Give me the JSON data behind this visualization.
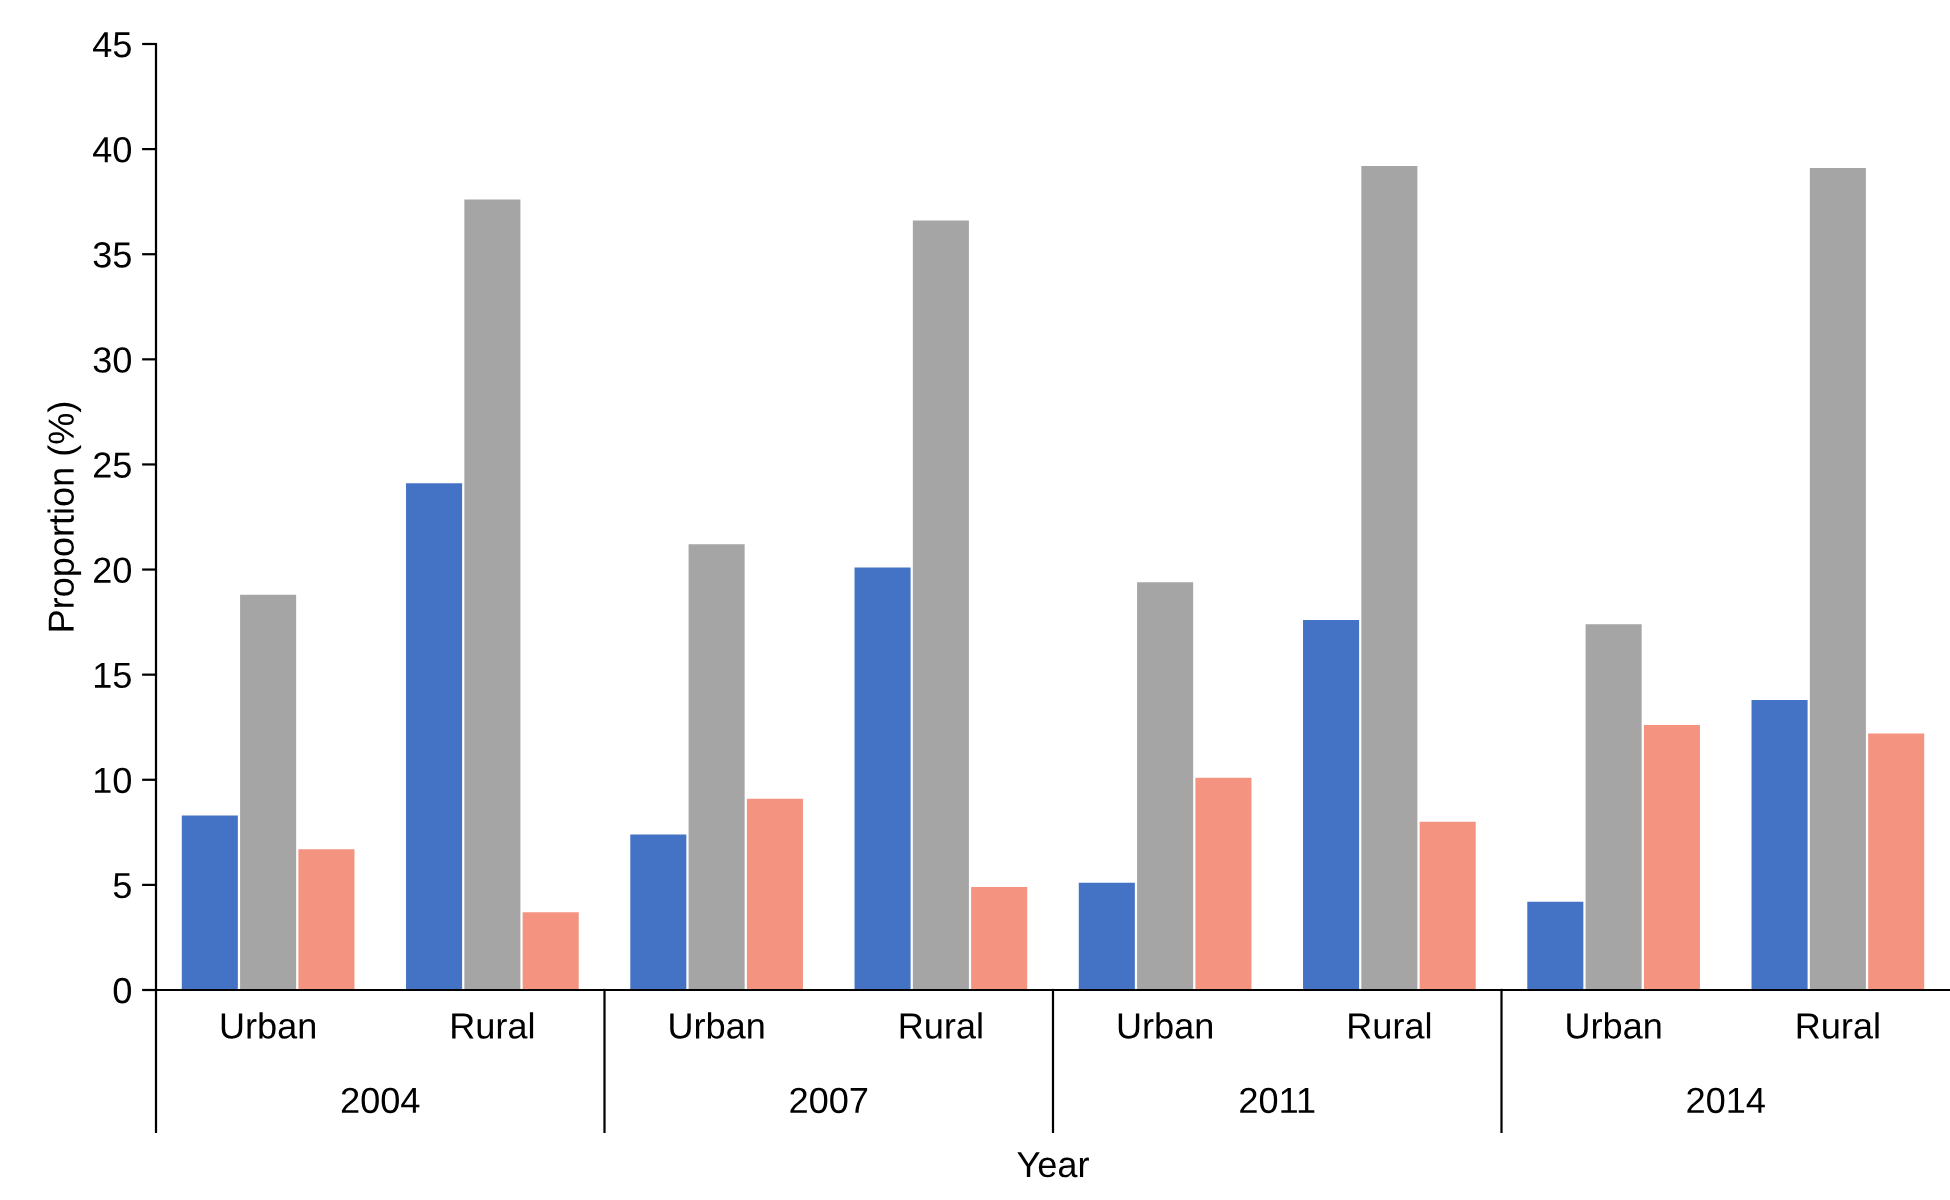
{
  "chart_data": {
    "type": "bar",
    "categories": [
      "Urban",
      "Rural",
      "Urban",
      "Rural",
      "Urban",
      "Rural",
      "Urban",
      "Rural"
    ],
    "series": [
      {
        "color": "#4472c4",
        "values": [
          8.3,
          24.1,
          7.4,
          20.1,
          5.1,
          17.6,
          4.2,
          13.8
        ]
      },
      {
        "color": "#a5a5a5",
        "values": [
          18.8,
          37.6,
          21.2,
          36.6,
          19.4,
          39.2,
          17.4,
          39.1
        ]
      },
      {
        "color": "#f4937f",
        "values": [
          6.7,
          3.7,
          9.1,
          4.9,
          10.1,
          8.0,
          12.6,
          12.2
        ]
      }
    ],
    "annotations": [
      "2004",
      "2007",
      "2011",
      "2014"
    ],
    "xlabel": "Year",
    "ylabel": "Proportion (%)",
    "ylim": [
      0,
      45
    ],
    "yticks": [
      0,
      5,
      10,
      15,
      20,
      25,
      30,
      35,
      40,
      45
    ],
    "grid": false,
    "legend": false
  }
}
